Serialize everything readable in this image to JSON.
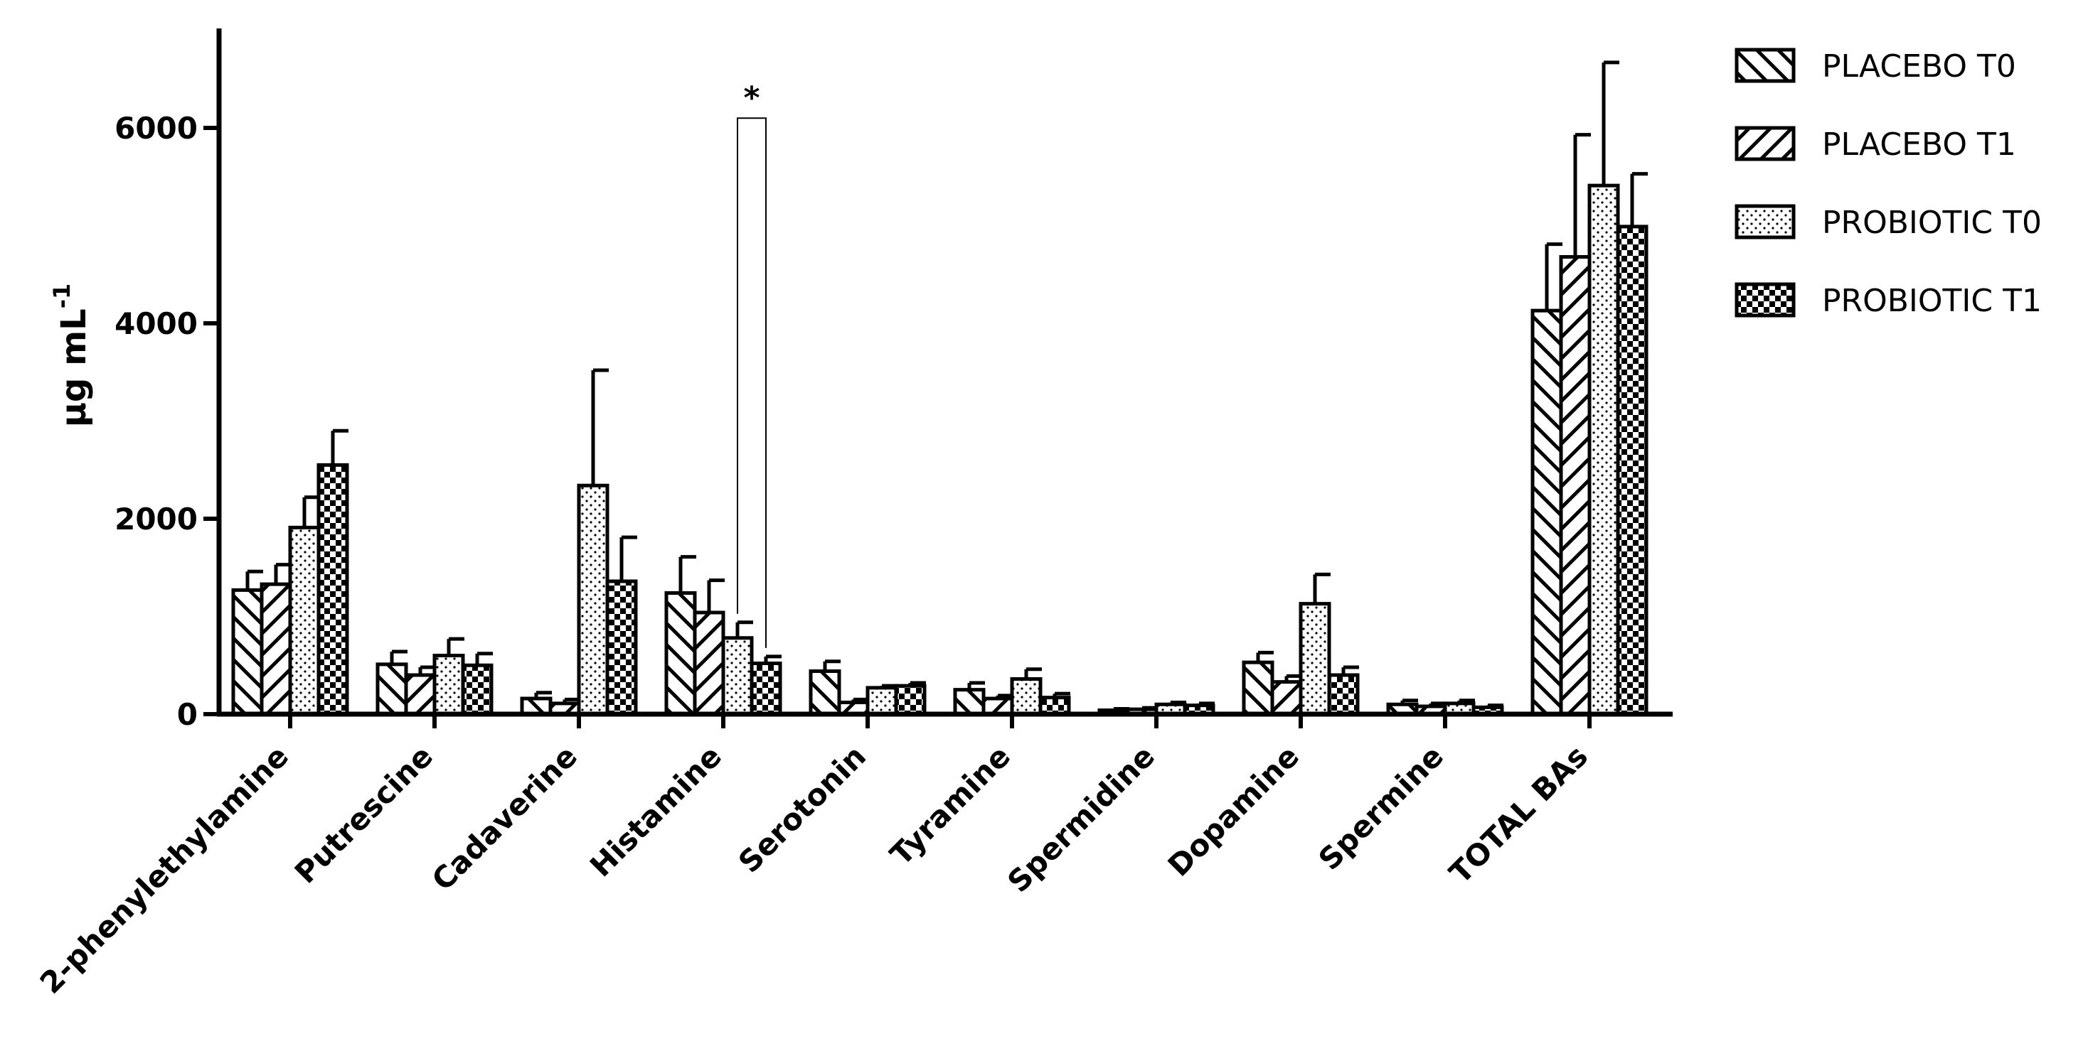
{
  "chart_data": {
    "type": "bar",
    "title": "",
    "xlabel": "",
    "ylabel": "μg mL",
    "ylabel_superscript": "-1",
    "ylim": [
      0,
      7000
    ],
    "yticks": [
      0,
      2000,
      4000,
      6000
    ],
    "ytick_labels": [
      "0",
      "2000",
      "4000",
      "6000"
    ],
    "categories": [
      "2-phenylethylamine",
      "Putrescine",
      "Cadaverine",
      "Histamine",
      "Serotonin",
      "Tyramine",
      "Spermidine",
      "Dopamine",
      "Spermine",
      "TOTAL BAs"
    ],
    "series": [
      {
        "name": "PLACEBO T0",
        "pattern": "diag-down",
        "values": [
          1270,
          510,
          160,
          1240,
          440,
          250,
          40,
          530,
          100,
          4130
        ],
        "errors": [
          190,
          130,
          60,
          370,
          100,
          70,
          15,
          100,
          40,
          680
        ]
      },
      {
        "name": "PLACEBO T1",
        "pattern": "diag-up",
        "values": [
          1330,
          400,
          110,
          1040,
          120,
          160,
          50,
          330,
          80,
          4680
        ],
        "errors": [
          200,
          80,
          40,
          330,
          30,
          30,
          15,
          60,
          30,
          1250
        ]
      },
      {
        "name": "PROBIOTIC T0",
        "pattern": "dots",
        "values": [
          1910,
          600,
          2340,
          780,
          270,
          360,
          100,
          1130,
          110,
          5410
        ],
        "errors": [
          310,
          170,
          1180,
          160,
          20,
          100,
          20,
          300,
          30,
          1260
        ]
      },
      {
        "name": "PROBIOTIC T1",
        "pattern": "checker",
        "values": [
          2550,
          500,
          1360,
          520,
          290,
          170,
          90,
          400,
          70,
          4990
        ],
        "errors": [
          350,
          120,
          450,
          70,
          30,
          40,
          20,
          80,
          20,
          540
        ]
      }
    ],
    "annotations": [
      {
        "text": "*",
        "category": "Histamine",
        "between_series": [
          "PROBIOTIC T0",
          "PROBIOTIC T1"
        ],
        "bracket_top_value": 6100
      }
    ],
    "legend_position": "top-right",
    "grid": false
  }
}
